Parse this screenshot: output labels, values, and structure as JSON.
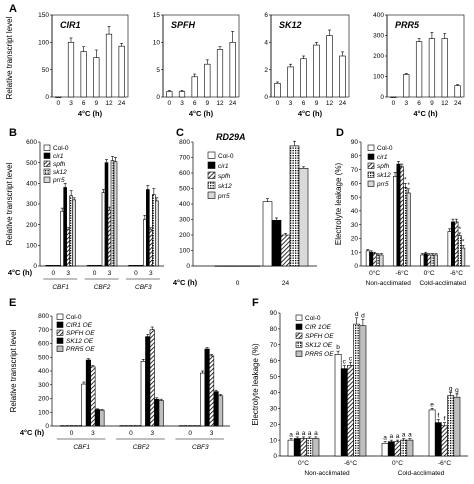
{
  "chart_data": [
    {
      "id": "A",
      "type": "bar",
      "panel_label": "A",
      "ylabel": "Relative transcript level",
      "xlabel": "4°C (h)",
      "categories": [
        "0",
        "3",
        "6",
        "9",
        "12",
        "24"
      ],
      "subplots": [
        {
          "title": "CIR1",
          "ylim": [
            0,
            150
          ],
          "yticks": [
            "0",
            "50",
            "100",
            "150"
          ],
          "values": [
            0,
            100,
            83,
            72,
            115,
            93
          ],
          "errors": [
            0,
            8,
            9,
            14,
            14,
            5
          ]
        },
        {
          "title": "SPFH",
          "ylim": [
            0,
            15
          ],
          "yticks": [
            "0",
            "5",
            "10",
            "15"
          ],
          "values": [
            1,
            1,
            3.7,
            6,
            8.7,
            10
          ],
          "errors": [
            0.2,
            0.2,
            0.5,
            0.8,
            0.5,
            2
          ]
        },
        {
          "title": "SK12",
          "ylim": [
            0,
            6
          ],
          "yticks": [
            "0",
            "2",
            "4",
            "6"
          ],
          "values": [
            1,
            2.2,
            2.8,
            3.8,
            4.5,
            3
          ],
          "errors": [
            0.1,
            0.2,
            0.2,
            0.2,
            0.4,
            0.3
          ]
        },
        {
          "title": "PRR5",
          "ylim": [
            0,
            400
          ],
          "yticks": [
            "0",
            "100",
            "200",
            "300",
            "400"
          ],
          "values": [
            0,
            110,
            270,
            285,
            285,
            55
          ],
          "errors": [
            0,
            5,
            15,
            30,
            25,
            5
          ]
        }
      ]
    },
    {
      "id": "B",
      "type": "bar",
      "panel_label": "B",
      "ylabel": "Relative transcript level",
      "xlabel": "4°C (h)",
      "ylim": [
        0,
        600
      ],
      "yticks": [
        "0",
        "100",
        "200",
        "300",
        "400",
        "500",
        "600"
      ],
      "time_points": [
        "0",
        "3"
      ],
      "groups": [
        "CBF1",
        "CBF2",
        "CBF3"
      ],
      "series": [
        {
          "name": "Col-0",
          "fill": "#ffffff",
          "values": [
            [
              2,
              265
            ],
            [
              2,
              355
            ],
            [
              2,
              225
            ]
          ],
          "errors": [
            [
              1,
              15
            ],
            [
              1,
              15
            ],
            [
              1,
              20
            ]
          ]
        },
        {
          "name": "cir1",
          "fill": "#000000",
          "values": [
            [
              2,
              380
            ],
            [
              2,
              500
            ],
            [
              2,
              370
            ]
          ],
          "errors": [
            [
              1,
              20
            ],
            [
              1,
              15
            ],
            [
              1,
              20
            ]
          ]
        },
        {
          "name": "spfh",
          "fill": "hatch",
          "values": [
            [
              2,
              175
            ],
            [
              2,
              270
            ],
            [
              2,
              175
            ]
          ],
          "errors": [
            [
              1,
              10
            ],
            [
              1,
              15
            ],
            [
              1,
              10
            ]
          ]
        },
        {
          "name": "sk12",
          "fill": "dots",
          "values": [
            [
              2,
              340
            ],
            [
              2,
              510
            ],
            [
              2,
              345
            ]
          ],
          "errors": [
            [
              1,
              25
            ],
            [
              1,
              20
            ],
            [
              1,
              30
            ]
          ]
        },
        {
          "name": "prr5",
          "fill": "#d9d9d9",
          "values": [
            [
              2,
              320
            ],
            [
              2,
              505
            ],
            [
              2,
              315
            ]
          ],
          "errors": [
            [
              1,
              10
            ],
            [
              1,
              20
            ],
            [
              1,
              15
            ]
          ]
        }
      ]
    },
    {
      "id": "C",
      "type": "bar",
      "panel_label": "C",
      "title": "RD29A",
      "xlabel": "4°C (h)",
      "ylim": [
        0,
        800
      ],
      "yticks": [
        "0",
        "100",
        "200",
        "300",
        "400",
        "500",
        "600",
        "700",
        "800"
      ],
      "categories": [
        "0",
        "24"
      ],
      "series": [
        {
          "name": "Col-0",
          "fill": "#ffffff",
          "values": [
            1,
            415
          ],
          "errors": [
            0,
            20
          ]
        },
        {
          "name": "cir1",
          "fill": "#000000",
          "values": [
            1,
            295
          ],
          "errors": [
            0,
            15
          ]
        },
        {
          "name": "spfh",
          "fill": "hatch",
          "values": [
            1,
            200
          ],
          "errors": [
            0,
            10
          ]
        },
        {
          "name": "sk12",
          "fill": "dots",
          "values": [
            1,
            775
          ],
          "errors": [
            0,
            30
          ]
        },
        {
          "name": "prr5",
          "fill": "#d9d9d9",
          "values": [
            1,
            630
          ],
          "errors": [
            0,
            10
          ]
        }
      ]
    },
    {
      "id": "D",
      "type": "bar",
      "panel_label": "D",
      "ylabel": "Electrolyte leakage (%)",
      "ylim": [
        0,
        90
      ],
      "yticks": [
        "0",
        "10",
        "20",
        "30",
        "40",
        "50",
        "60",
        "70",
        "80",
        "90"
      ],
      "categories": [
        "0°C",
        "-6°C",
        "0°C",
        "-6°C"
      ],
      "group_labels": [
        "Non-acclimated",
        "Cold-acclimated"
      ],
      "series": [
        {
          "name": "Col-0",
          "fill": "#ffffff",
          "values": [
            11,
            65,
            8,
            25
          ],
          "errors": [
            1,
            3,
            1,
            2
          ]
        },
        {
          "name": "cir1",
          "fill": "#000000",
          "values": [
            10,
            74,
            9,
            32
          ],
          "errors": [
            1,
            2,
            1,
            2
          ]
        },
        {
          "name": "spfh",
          "fill": "hatch",
          "values": [
            9,
            72,
            8,
            32
          ],
          "errors": [
            1,
            2,
            1,
            2
          ]
        },
        {
          "name": "sk12",
          "fill": "dots",
          "values": [
            8,
            57,
            8,
            22
          ],
          "errors": [
            1,
            3,
            1,
            2
          ]
        },
        {
          "name": "prr5",
          "fill": "#d9d9d9",
          "values": [
            8,
            53,
            8,
            13
          ],
          "errors": [
            1,
            3,
            1,
            2
          ]
        }
      ],
      "annotations": [
        {
          "text": "*",
          "group": 1,
          "series": 3
        },
        {
          "text": "*",
          "group": 1,
          "series": 4
        },
        {
          "text": "*",
          "group": 3,
          "series": 3
        },
        {
          "text": "*",
          "group": 3,
          "series": 4
        }
      ]
    },
    {
      "id": "E",
      "type": "bar",
      "panel_label": "E",
      "ylabel": "Relative transcript level",
      "xlabel": "4°C (h)",
      "ylim": [
        0,
        800
      ],
      "yticks": [
        "0",
        "100",
        "200",
        "300",
        "400",
        "500",
        "600",
        "700",
        "800"
      ],
      "time_points": [
        "0",
        "3"
      ],
      "groups": [
        "CBF1",
        "CBF2",
        "CBF3"
      ],
      "series": [
        {
          "name": "Col-0",
          "fill": "#ffffff",
          "values": [
            [
              2,
              305
            ],
            [
              2,
              470
            ],
            [
              2,
              385
            ]
          ],
          "errors": [
            [
              1,
              15
            ],
            [
              1,
              15
            ],
            [
              1,
              15
            ]
          ]
        },
        {
          "name": "CIR1 OE",
          "fill": "#000000",
          "values": [
            [
              2,
              480
            ],
            [
              2,
              650
            ],
            [
              2,
              560
            ]
          ],
          "errors": [
            [
              1,
              10
            ],
            [
              1,
              15
            ],
            [
              1,
              10
            ]
          ]
        },
        {
          "name": "SPFH OE",
          "fill": "hatch",
          "values": [
            [
              2,
              430
            ],
            [
              2,
              700
            ],
            [
              2,
              510
            ]
          ],
          "errors": [
            [
              1,
              10
            ],
            [
              1,
              20
            ],
            [
              1,
              10
            ]
          ]
        },
        {
          "name": "SK12 OE",
          "fill": "#000000",
          "values": [
            [
              2,
              120
            ],
            [
              2,
              195
            ],
            [
              2,
              250
            ]
          ],
          "errors": [
            [
              1,
              5
            ],
            [
              1,
              10
            ],
            [
              1,
              10
            ]
          ]
        },
        {
          "name": "PRR5 OE",
          "fill": "#bfbfbf",
          "values": [
            [
              2,
              115
            ],
            [
              2,
              185
            ],
            [
              2,
              220
            ]
          ],
          "errors": [
            [
              1,
              5
            ],
            [
              1,
              10
            ],
            [
              1,
              10
            ]
          ]
        }
      ]
    },
    {
      "id": "F",
      "type": "bar",
      "panel_label": "F",
      "ylabel": "Electrolyte leakage (%)",
      "ylim": [
        0,
        90
      ],
      "yticks": [
        "0",
        "10",
        "20",
        "30",
        "40",
        "50",
        "60",
        "70",
        "80",
        "90"
      ],
      "categories": [
        "0°C",
        "-6°C",
        "0°C",
        "-6°C"
      ],
      "group_labels": [
        "Non-acclimated",
        "Cold-acclimated"
      ],
      "series": [
        {
          "name": "Col-0",
          "fill": "#ffffff",
          "values": [
            10,
            64,
            8,
            29
          ],
          "errors": [
            1,
            2,
            1,
            1
          ]
        },
        {
          "name": "CIR 1OE",
          "fill": "#000000",
          "values": [
            11,
            55,
            9,
            21
          ],
          "errors": [
            1,
            2,
            1,
            2
          ]
        },
        {
          "name": "SPFH OE",
          "fill": "hatch",
          "values": [
            11,
            57,
            9,
            19
          ],
          "errors": [
            1,
            2,
            1,
            2
          ]
        },
        {
          "name": "SK12 OE",
          "fill": "dots",
          "values": [
            11,
            83,
            10,
            38
          ],
          "errors": [
            1,
            4,
            1,
            2
          ]
        },
        {
          "name": "PRR5 OE",
          "fill": "#bfbfbf",
          "values": [
            11,
            82,
            10,
            37
          ],
          "errors": [
            1,
            4,
            1,
            2
          ]
        }
      ],
      "annotations": [
        {
          "text": "a",
          "group": 0,
          "series": 0
        },
        {
          "text": "a",
          "group": 0,
          "series": 1
        },
        {
          "text": "a",
          "group": 0,
          "series": 2
        },
        {
          "text": "a",
          "group": 0,
          "series": 3
        },
        {
          "text": "a",
          "group": 0,
          "series": 4
        },
        {
          "text": "b",
          "group": 1,
          "series": 0
        },
        {
          "text": "c",
          "group": 1,
          "series": 1
        },
        {
          "text": "c",
          "group": 1,
          "series": 2
        },
        {
          "text": "d",
          "group": 1,
          "series": 3
        },
        {
          "text": "d",
          "group": 1,
          "series": 4
        },
        {
          "text": "a",
          "group": 2,
          "series": 0
        },
        {
          "text": "a",
          "group": 2,
          "series": 1
        },
        {
          "text": "a",
          "group": 2,
          "series": 2
        },
        {
          "text": "a",
          "group": 2,
          "series": 3
        },
        {
          "text": "a",
          "group": 2,
          "series": 4
        },
        {
          "text": "e",
          "group": 3,
          "series": 0
        },
        {
          "text": "f",
          "group": 3,
          "series": 1
        },
        {
          "text": "f",
          "group": 3,
          "series": 2
        },
        {
          "text": "g",
          "group": 3,
          "series": 3
        },
        {
          "text": "g",
          "group": 3,
          "series": 4
        }
      ]
    }
  ]
}
